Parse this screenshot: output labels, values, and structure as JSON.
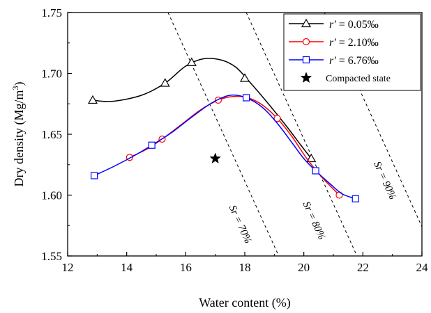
{
  "chart_data": {
    "type": "line",
    "xlabel": "Water content (%)",
    "ylabel": "Dry density (Mg/m",
    "ylabel_superscript": "3",
    "ylabel_suffix": ")",
    "xlim": [
      12,
      24
    ],
    "ylim": [
      1.55,
      1.75
    ],
    "xticks": [
      "12",
      "14",
      "16",
      "18",
      "20",
      "22",
      "24"
    ],
    "yticks": [
      "1.55",
      "1.60",
      "1.65",
      "1.70",
      "1.75"
    ],
    "legend_position": "top-right",
    "series": [
      {
        "name": "r′ = 0.05‰",
        "legend_prefix": "r′",
        "legend_value": " = 0.05‰",
        "color": "#000000",
        "marker": "triangle",
        "points": [
          [
            12.85,
            1.678
          ],
          [
            15.3,
            1.692
          ],
          [
            16.2,
            1.709
          ],
          [
            18.0,
            1.696
          ],
          [
            20.25,
            1.63
          ]
        ],
        "curve": [
          [
            12.85,
            1.678
          ],
          [
            13.5,
            1.677
          ],
          [
            14.5,
            1.682
          ],
          [
            15.3,
            1.692
          ],
          [
            16.0,
            1.706
          ],
          [
            16.6,
            1.712
          ],
          [
            17.2,
            1.711
          ],
          [
            17.7,
            1.705
          ],
          [
            18.2,
            1.692
          ],
          [
            18.8,
            1.675
          ],
          [
            19.4,
            1.657
          ],
          [
            19.9,
            1.641
          ],
          [
            20.25,
            1.63
          ]
        ]
      },
      {
        "name": "r′ = 2.10‰",
        "legend_prefix": "r′",
        "legend_value": " = 2.10‰",
        "color": "#ff0000",
        "marker": "circle",
        "points": [
          [
            14.1,
            1.631
          ],
          [
            15.2,
            1.646
          ],
          [
            17.1,
            1.678
          ],
          [
            19.1,
            1.663
          ],
          [
            21.2,
            1.6
          ]
        ],
        "curve": [
          [
            14.1,
            1.631
          ],
          [
            14.7,
            1.638
          ],
          [
            15.2,
            1.646
          ],
          [
            15.8,
            1.657
          ],
          [
            16.5,
            1.67
          ],
          [
            17.1,
            1.678
          ],
          [
            17.6,
            1.681
          ],
          [
            18.1,
            1.68
          ],
          [
            18.6,
            1.674
          ],
          [
            19.1,
            1.663
          ],
          [
            19.6,
            1.648
          ],
          [
            20.1,
            1.63
          ],
          [
            20.6,
            1.615
          ],
          [
            21.2,
            1.6
          ]
        ]
      },
      {
        "name": "r′ = 6.76‰",
        "legend_prefix": "r′",
        "legend_value": " = 6.76‰",
        "color": "#0000ff",
        "marker": "square",
        "points": [
          [
            12.9,
            1.616
          ],
          [
            14.85,
            1.641
          ],
          [
            18.05,
            1.68
          ],
          [
            20.4,
            1.62
          ],
          [
            21.75,
            1.597
          ]
        ],
        "curve": [
          [
            12.9,
            1.616
          ],
          [
            13.6,
            1.624
          ],
          [
            14.3,
            1.633
          ],
          [
            14.85,
            1.641
          ],
          [
            15.5,
            1.651
          ],
          [
            16.2,
            1.664
          ],
          [
            16.9,
            1.676
          ],
          [
            17.5,
            1.682
          ],
          [
            18.05,
            1.68
          ],
          [
            18.6,
            1.672
          ],
          [
            19.1,
            1.659
          ],
          [
            19.6,
            1.643
          ],
          [
            20.0,
            1.63
          ],
          [
            20.4,
            1.62
          ],
          [
            20.9,
            1.609
          ],
          [
            21.3,
            1.601
          ],
          [
            21.75,
            1.597
          ]
        ]
      }
    ],
    "compacted_state": {
      "label": "Compacted state",
      "point": [
        17.0,
        1.63
      ],
      "marker": "star"
    },
    "saturation_lines": [
      {
        "label": "Sr = 70%",
        "points": [
          [
            15.4,
            1.75
          ],
          [
            19.15,
            1.55
          ]
        ],
        "label_at": [
          17.75,
          1.575
        ]
      },
      {
        "label": "Sr = 80%",
        "points": [
          [
            18.05,
            1.75
          ],
          [
            21.8,
            1.55
          ]
        ],
        "label_at": [
          20.25,
          1.578
        ]
      },
      {
        "label": "Sr = 90%",
        "points": [
          [
            20.7,
            1.75
          ],
          [
            24.0,
            1.574
          ]
        ],
        "label_at": [
          22.65,
          1.611
        ]
      }
    ]
  }
}
